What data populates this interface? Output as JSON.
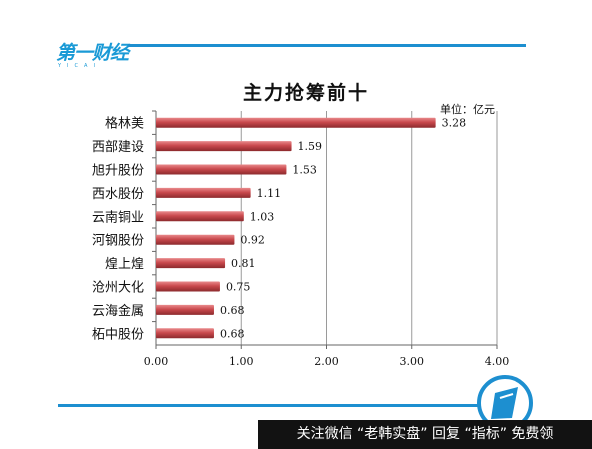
{
  "brand": {
    "logo_text": "第一财经",
    "logo_sub": "YICAI"
  },
  "colors": {
    "accent": "#1d8fd0",
    "bar": "#c9494d",
    "bar_highlight": "#e98a8c",
    "bar_shadow": "#8c2a2d"
  },
  "chart_data": {
    "type": "bar",
    "orientation": "horizontal",
    "title": "主力抢筹前十",
    "unit": "单位：亿元",
    "categories": [
      "格林美",
      "西部建设",
      "旭升股份",
      "西水股份",
      "云南铜业",
      "河钢股份",
      "煌上煌",
      "沧州大化",
      "云海金属",
      "柘中股份"
    ],
    "values": [
      3.28,
      1.59,
      1.53,
      1.11,
      1.03,
      0.92,
      0.81,
      0.75,
      0.68,
      0.68
    ],
    "value_labels": [
      "3.28",
      "1.59",
      "1.53",
      "1.11",
      "1.03",
      "0.92",
      "0.81",
      "0.75",
      "0.68",
      "0.68"
    ],
    "xlim": [
      0,
      4
    ],
    "xticks": [
      0,
      1,
      2,
      3,
      4
    ],
    "xtick_labels": [
      "0.00",
      "1.00",
      "2.00",
      "3.00",
      "4.00"
    ],
    "grid": true
  },
  "footer": {
    "text": "关注微信 “老韩实盘” 回复 “指标” 免费领"
  }
}
